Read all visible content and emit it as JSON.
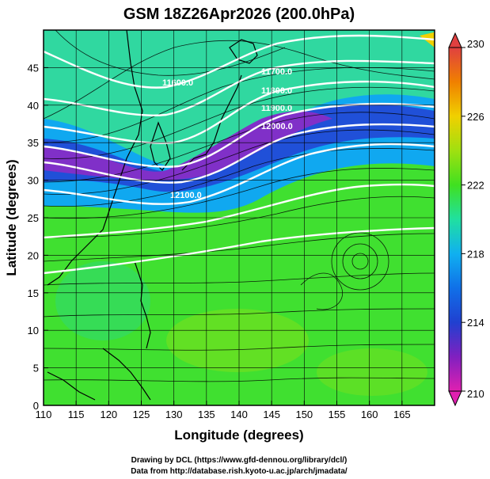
{
  "title": "GSM 18Z26Apr2026 (200.0hPa)",
  "x_axis": {
    "label": "Longitude (degrees)",
    "range": [
      110,
      170
    ],
    "ticks": [
      "110",
      "115",
      "120",
      "125",
      "130",
      "135",
      "140",
      "145",
      "150",
      "155",
      "160",
      "165"
    ]
  },
  "y_axis": {
    "label": "Latitude  (degrees)",
    "range": [
      0,
      50
    ],
    "ticks": [
      "0",
      "5",
      "10",
      "15",
      "20",
      "25",
      "30",
      "35",
      "40",
      "45"
    ]
  },
  "colorbar": {
    "range": [
      210,
      230
    ],
    "ticks": [
      "210",
      "214",
      "218",
      "222",
      "226",
      "230"
    ],
    "colors": [
      "#e020b0",
      "#8020c0",
      "#2040d0",
      "#10a0f0",
      "#20e0a0",
      "#40e020",
      "#a0e010",
      "#f0d000",
      "#f08000",
      "#e04040"
    ]
  },
  "contour_labels": [
    "11600.0",
    "11700.0",
    "11800.0",
    "11900.0",
    "12000.0",
    "12100.0"
  ],
  "credits": {
    "line1": "Drawing by DCL (https://www.gfd-dennou.org/library/dcl/)",
    "line2": "Data from http://database.rish.kyoto-u.ac.jp/arch/jmadata/"
  },
  "colors": {
    "grid": "#000000",
    "contour": "#ffffff",
    "coast": "#000000"
  }
}
